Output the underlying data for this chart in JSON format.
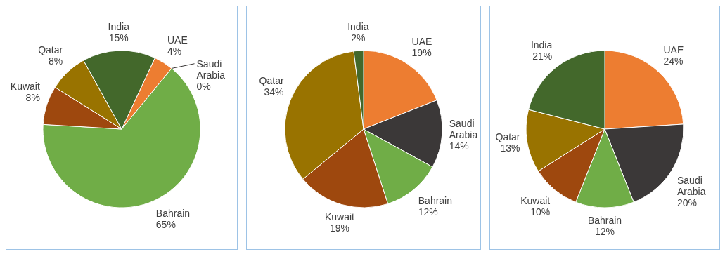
{
  "chart_data": [
    {
      "type": "pie",
      "categories": [
        "UAE",
        "Saudi Arabia",
        "Bahrain",
        "Kuwait",
        "Qatar",
        "India"
      ],
      "values": [
        4,
        0,
        65,
        8,
        8,
        15
      ],
      "value_labels": [
        "4%",
        "0%",
        "65%",
        "8%",
        "8%",
        "15%"
      ],
      "colors": [
        "#ed7d31",
        "#3b3838",
        "#70ad47",
        "#9e480e",
        "#997300",
        "#43682b"
      ]
    },
    {
      "type": "pie",
      "categories": [
        "UAE",
        "Saudi Arabia",
        "Bahrain",
        "Kuwait",
        "Qatar",
        "India"
      ],
      "values": [
        19,
        14,
        12,
        19,
        34,
        2
      ],
      "value_labels": [
        "19%",
        "14%",
        "12%",
        "19%",
        "34%",
        "2%"
      ],
      "colors": [
        "#ed7d31",
        "#3b3838",
        "#70ad47",
        "#9e480e",
        "#997300",
        "#43682b"
      ]
    },
    {
      "type": "pie",
      "categories": [
        "UAE",
        "Saudi Arabia",
        "Bahrain",
        "Kuwait",
        "Qatar",
        "India"
      ],
      "values": [
        24,
        20,
        12,
        10,
        13,
        21
      ],
      "value_labels": [
        "24%",
        "20%",
        "12%",
        "10%",
        "13%",
        "21%"
      ],
      "colors": [
        "#ed7d31",
        "#3b3838",
        "#70ad47",
        "#9e480e",
        "#997300",
        "#43682b"
      ]
    }
  ]
}
